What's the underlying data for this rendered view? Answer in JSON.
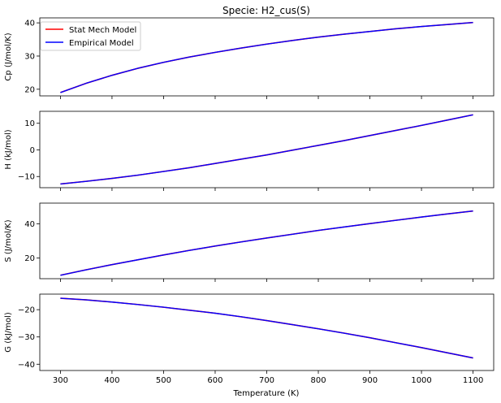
{
  "title": "Specie: H2_cus(S)",
  "xlabel": "Temperature (K)",
  "legend": {
    "placement": "top-left",
    "entries": [
      {
        "label": "Stat Mech Model",
        "color": "#ff0000"
      },
      {
        "label": "Empirical Model",
        "color": "#0000ff"
      }
    ]
  },
  "colors": {
    "stat_mech": "#ff0000",
    "empirical": "#0000ff"
  },
  "chart_data": [
    {
      "type": "line",
      "ylabel": "Cp (J/mol/K)",
      "xlim": [
        260,
        1140
      ],
      "ylim": [
        18,
        41.5
      ],
      "xticks": [
        300,
        400,
        500,
        600,
        700,
        800,
        900,
        1000,
        1100
      ],
      "yticks": [
        20,
        30,
        40
      ],
      "x": [
        300,
        350,
        400,
        450,
        500,
        550,
        600,
        650,
        700,
        750,
        800,
        850,
        900,
        950,
        1000,
        1050,
        1100
      ],
      "series": [
        {
          "name": "Stat Mech Model",
          "values": [
            19.0,
            21.8,
            24.2,
            26.3,
            28.1,
            29.7,
            31.1,
            32.4,
            33.6,
            34.7,
            35.7,
            36.6,
            37.4,
            38.2,
            38.9,
            39.5,
            40.1
          ]
        },
        {
          "name": "Empirical Model",
          "values": [
            19.0,
            21.8,
            24.2,
            26.3,
            28.1,
            29.7,
            31.1,
            32.4,
            33.6,
            34.7,
            35.7,
            36.6,
            37.4,
            38.2,
            38.9,
            39.5,
            40.1
          ]
        }
      ]
    },
    {
      "type": "line",
      "ylabel": "H (kJ/mol)",
      "xlim": [
        260,
        1140
      ],
      "ylim": [
        -14.2,
        14.5
      ],
      "xticks": [
        300,
        400,
        500,
        600,
        700,
        800,
        900,
        1000,
        1100
      ],
      "yticks": [
        -10,
        0,
        10
      ],
      "x": [
        300,
        350,
        400,
        450,
        500,
        550,
        600,
        650,
        700,
        750,
        800,
        850,
        900,
        950,
        1000,
        1050,
        1100
      ],
      "series": [
        {
          "name": "Stat Mech Model",
          "values": [
            -12.8,
            -11.8,
            -10.7,
            -9.5,
            -8.1,
            -6.7,
            -5.1,
            -3.5,
            -1.9,
            -0.1,
            1.7,
            3.5,
            5.4,
            7.3,
            9.2,
            11.2,
            13.2
          ]
        },
        {
          "name": "Empirical Model",
          "values": [
            -12.8,
            -11.8,
            -10.7,
            -9.5,
            -8.1,
            -6.7,
            -5.1,
            -3.5,
            -1.9,
            -0.1,
            1.7,
            3.5,
            5.4,
            7.3,
            9.2,
            11.2,
            13.2
          ]
        }
      ]
    },
    {
      "type": "line",
      "ylabel": "S (J/mol/K)",
      "xlim": [
        260,
        1140
      ],
      "ylim": [
        8,
        52
      ],
      "xticks": [
        300,
        400,
        500,
        600,
        700,
        800,
        900,
        1000,
        1100
      ],
      "yticks": [
        20,
        40
      ],
      "x": [
        300,
        350,
        400,
        450,
        500,
        550,
        600,
        650,
        700,
        750,
        800,
        850,
        900,
        950,
        1000,
        1050,
        1100
      ],
      "series": [
        {
          "name": "Stat Mech Model",
          "values": [
            10.0,
            13.2,
            16.2,
            19.0,
            21.8,
            24.5,
            27.0,
            29.4,
            31.7,
            33.9,
            36.1,
            38.1,
            40.1,
            42.0,
            43.9,
            45.7,
            47.4
          ]
        },
        {
          "name": "Empirical Model",
          "values": [
            10.0,
            13.2,
            16.2,
            19.0,
            21.8,
            24.5,
            27.0,
            29.4,
            31.7,
            33.9,
            36.1,
            38.1,
            40.1,
            42.0,
            43.9,
            45.7,
            47.4
          ]
        }
      ]
    },
    {
      "type": "line",
      "ylabel": "G (kJ/mol)",
      "xlim": [
        260,
        1140
      ],
      "ylim": [
        -42.3,
        -14.3
      ],
      "xticks": [
        300,
        400,
        500,
        600,
        700,
        800,
        900,
        1000,
        1100
      ],
      "xticklabels": [
        "300",
        "400",
        "500",
        "600",
        "700",
        "800",
        "900",
        "1000",
        "1100"
      ],
      "yticks": [
        -20,
        -30,
        -40
      ],
      "x": [
        300,
        350,
        400,
        450,
        500,
        550,
        600,
        650,
        700,
        750,
        800,
        850,
        900,
        950,
        1000,
        1050,
        1100
      ],
      "series": [
        {
          "name": "Stat Mech Model",
          "values": [
            -15.8,
            -16.4,
            -17.2,
            -18.1,
            -19.1,
            -20.2,
            -21.3,
            -22.6,
            -24.0,
            -25.5,
            -27.0,
            -28.6,
            -30.3,
            -32.1,
            -33.9,
            -35.8,
            -37.7
          ]
        },
        {
          "name": "Empirical Model",
          "values": [
            -15.8,
            -16.4,
            -17.2,
            -18.1,
            -19.1,
            -20.2,
            -21.3,
            -22.6,
            -24.0,
            -25.5,
            -27.0,
            -28.6,
            -30.3,
            -32.1,
            -33.9,
            -35.8,
            -37.7
          ]
        }
      ]
    }
  ]
}
